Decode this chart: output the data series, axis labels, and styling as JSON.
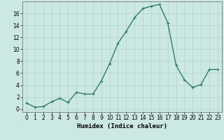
{
  "x": [
    0,
    1,
    2,
    3,
    4,
    5,
    6,
    7,
    8,
    9,
    10,
    11,
    12,
    13,
    14,
    15,
    16,
    17,
    18,
    19,
    20,
    21,
    22,
    23
  ],
  "y": [
    1.0,
    0.3,
    0.4,
    1.2,
    1.8,
    1.1,
    2.8,
    2.5,
    2.5,
    4.7,
    7.6,
    11.0,
    13.0,
    15.3,
    16.8,
    17.2,
    17.5,
    14.4,
    7.3,
    4.9,
    3.6,
    4.1,
    6.6,
    6.6
  ],
  "line_color": "#2d7d6e",
  "marker": "+",
  "marker_size": 3,
  "linewidth": 1.0,
  "xlabel": "Humidex (Indice chaleur)",
  "xlim": [
    -0.5,
    23.5
  ],
  "ylim": [
    -0.5,
    18.0
  ],
  "yticks": [
    0,
    2,
    4,
    6,
    8,
    10,
    12,
    14,
    16
  ],
  "xticks": [
    0,
    1,
    2,
    3,
    4,
    5,
    6,
    7,
    8,
    9,
    10,
    11,
    12,
    13,
    14,
    15,
    16,
    17,
    18,
    19,
    20,
    21,
    22,
    23
  ],
  "bg_color": "#cce8e3",
  "grid_color": "#b5d0cb",
  "tick_fontsize": 5.5,
  "xlabel_fontsize": 6.5,
  "xlabel_fontweight": "bold"
}
